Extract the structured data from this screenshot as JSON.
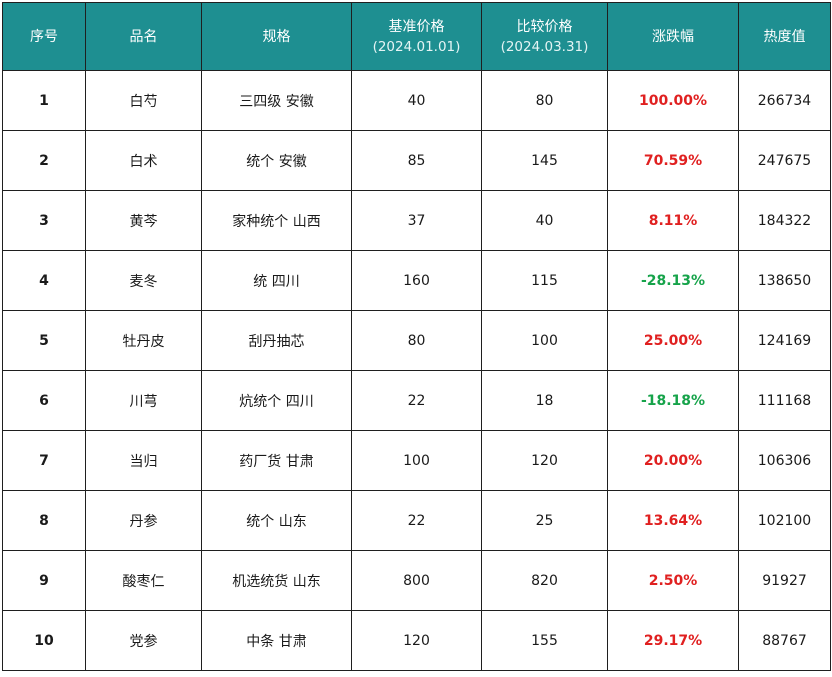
{
  "headers": {
    "idx": "序号",
    "name": "品名",
    "spec": "规格",
    "base_price": "基准价格",
    "base_date": "(2024.01.01)",
    "cmp_price": "比较价格",
    "cmp_date": "(2024.03.31)",
    "change": "涨跌幅",
    "heat": "热度值"
  },
  "colors": {
    "header_bg": "#1e8f91",
    "up": "#e02020",
    "down": "#16a34a"
  },
  "rows": [
    {
      "idx": "1",
      "name": "白芍",
      "spec": "三四级 安徽",
      "base": "40",
      "cmp": "80",
      "change": "100.00%",
      "dir": "up",
      "heat": "266734"
    },
    {
      "idx": "2",
      "name": "白术",
      "spec": "统个 安徽",
      "base": "85",
      "cmp": "145",
      "change": "70.59%",
      "dir": "up",
      "heat": "247675"
    },
    {
      "idx": "3",
      "name": "黄芩",
      "spec": "家种统个 山西",
      "base": "37",
      "cmp": "40",
      "change": "8.11%",
      "dir": "up",
      "heat": "184322"
    },
    {
      "idx": "4",
      "name": "麦冬",
      "spec": "统 四川",
      "base": "160",
      "cmp": "115",
      "change": "-28.13%",
      "dir": "down",
      "heat": "138650"
    },
    {
      "idx": "5",
      "name": "牡丹皮",
      "spec": "刮丹抽芯",
      "base": "80",
      "cmp": "100",
      "change": "25.00%",
      "dir": "up",
      "heat": "124169"
    },
    {
      "idx": "6",
      "name": "川芎",
      "spec": "炕统个 四川",
      "base": "22",
      "cmp": "18",
      "change": "-18.18%",
      "dir": "down",
      "heat": "111168"
    },
    {
      "idx": "7",
      "name": "当归",
      "spec": "药厂货 甘肃",
      "base": "100",
      "cmp": "120",
      "change": "20.00%",
      "dir": "up",
      "heat": "106306"
    },
    {
      "idx": "8",
      "name": "丹参",
      "spec": "统个 山东",
      "base": "22",
      "cmp": "25",
      "change": "13.64%",
      "dir": "up",
      "heat": "102100"
    },
    {
      "idx": "9",
      "name": "酸枣仁",
      "spec": "机选统货 山东",
      "base": "800",
      "cmp": "820",
      "change": "2.50%",
      "dir": "up",
      "heat": "91927"
    },
    {
      "idx": "10",
      "name": "党参",
      "spec": "中条 甘肃",
      "base": "120",
      "cmp": "155",
      "change": "29.17%",
      "dir": "up",
      "heat": "88767"
    }
  ]
}
